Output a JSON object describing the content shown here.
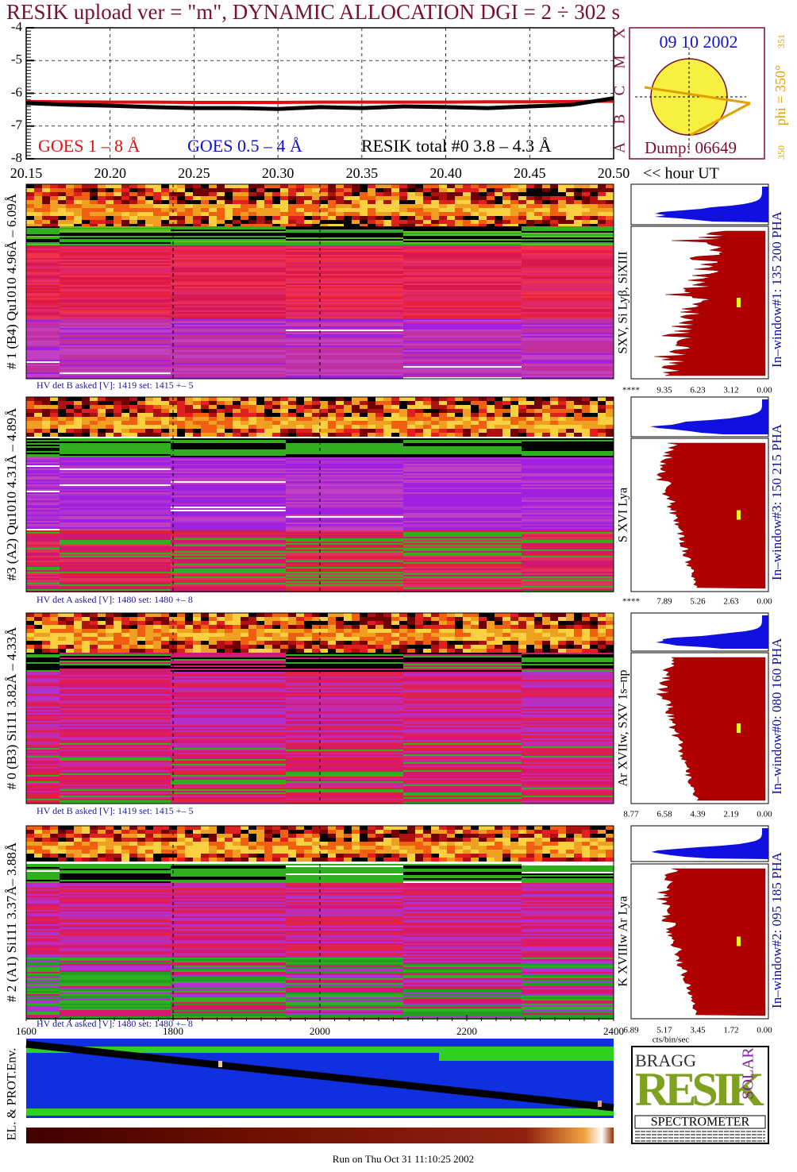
{
  "title": "RESIK upload ver = \"m\", DYNAMIC ALLOCATION  DGI =   2 ÷ 302 s",
  "chart_data": {
    "type": "line",
    "x": [
      20.15,
      20.175,
      20.2,
      20.225,
      20.25,
      20.275,
      20.3,
      20.325,
      20.35,
      20.375,
      20.4,
      20.425,
      20.45,
      20.475,
      20.5
    ],
    "series": [
      {
        "name": "GOES 1 – 8 Å",
        "color": "#e01010",
        "values": [
          -6.25,
          -6.26,
          -6.27,
          -6.27,
          -6.28,
          -6.28,
          -6.28,
          -6.27,
          -6.27,
          -6.27,
          -6.27,
          -6.26,
          -6.26,
          -6.25,
          -6.24
        ]
      },
      {
        "name": "GOES 0.5 – 4 Å",
        "color": "#1010d0",
        "values": [
          null,
          null,
          null,
          null,
          null,
          null,
          null,
          null,
          null,
          null,
          null,
          null,
          null,
          null,
          null
        ]
      },
      {
        "name": "RESIK total #0  3.8 – 4.3 Å",
        "color": "#000000",
        "values": [
          -6.3,
          -6.35,
          -6.38,
          -6.42,
          -6.45,
          -6.45,
          -6.48,
          -6.42,
          -6.45,
          -6.4,
          -6.42,
          -6.45,
          -6.4,
          -6.35,
          -6.15
        ]
      }
    ],
    "xlim": [
      20.15,
      20.5
    ],
    "xticks": [
      {
        "value": 20.15,
        "label": "20.15"
      },
      {
        "value": 20.2,
        "label": "20.20"
      },
      {
        "value": 20.25,
        "label": "20.25"
      },
      {
        "value": 20.3,
        "label": "20.30"
      },
      {
        "value": 20.35,
        "label": "20.35"
      },
      {
        "value": 20.4,
        "label": "20.40"
      },
      {
        "value": 20.45,
        "label": "20.45"
      },
      {
        "value": 20.5,
        "label": "20.50"
      }
    ],
    "xlabel": "<< hour UT",
    "ylim": [
      -8,
      -4
    ],
    "yticks": [
      -8,
      -7,
      -6,
      -5,
      -4
    ],
    "grid": true
  },
  "orbit": {
    "date": "09 10 2002",
    "dump": "Dump: 06649",
    "phi": "phi = 350°",
    "phi_top": "351",
    "phi_bottom": "350",
    "classes": [
      "X",
      "M",
      "C",
      "B",
      "A"
    ]
  },
  "panels": [
    {
      "label": "# 1 (B4) Qu1010 4.96Å – 6.09Å",
      "hv": "HV det B asked [V]:  1419 set:  1415 +–    5",
      "lines": "SXV, Si Lyβ, SiXIII",
      "window": "In–window#1:  135 200 PHA",
      "ticks": [
        "****",
        "9.35",
        "6.23",
        "3.12",
        "0.00"
      ]
    },
    {
      "label": "#3 (A2) Qu1010  4.31Å – 4.89Å",
      "hv": "HV det A asked [V]:  1480 set:  1480 +–    8",
      "lines": "S XVI Lya",
      "window": "In–window#3:  150 215 PHA",
      "ticks": [
        "****",
        "7.89",
        "5.26",
        "2.63",
        "0.00"
      ]
    },
    {
      "label": "# 0 (B3) Si111  3.82Å – 4.33Å",
      "hv": "HV det B asked [V]:  1419 set:  1415 +–    5",
      "lines": "Ar XVIIw,  SXV 1s–np",
      "window": "In–window#0:  080 160 PHA",
      "ticks": [
        "8.77",
        "6.58",
        "4.39",
        "2.19",
        "0.00"
      ]
    },
    {
      "label": "# 2 (A1) Si111  3.37Å– 3.88Å",
      "hv": "HV det A asked [V]:  1480 set:  1480 +–    8",
      "lines": "K XVIIIw  Ar Lya",
      "window": "In–window#2:  095 185 PHA",
      "ticks": [
        "6.89",
        "5.17",
        "3.45",
        "1.72",
        "0.00"
      ]
    }
  ],
  "bottom": {
    "xticks": [
      "1600",
      "1800",
      "2000",
      "2200",
      "2400"
    ],
    "ylabel": "EL. & PROT.Env.",
    "unit": "cts/bin/sec"
  },
  "logo": {
    "bragg": "BRAGG",
    "resik": "RESIK",
    "solar": "SOLAR",
    "spectrometer": "SPECTROMETER"
  },
  "footer": "Run on Thu Oct 31 11:10:25 2002"
}
